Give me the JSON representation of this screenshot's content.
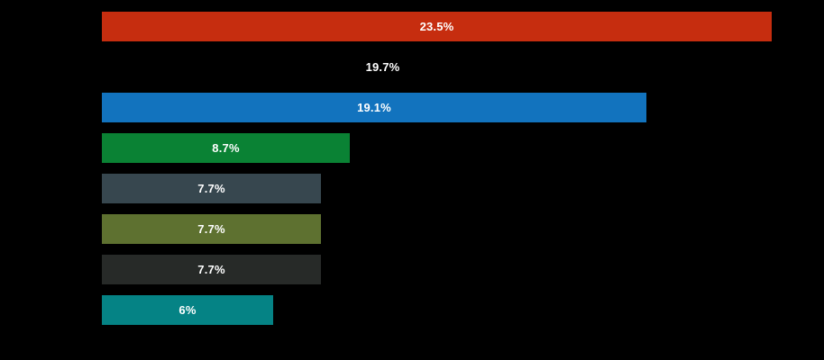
{
  "page": {
    "background": "#000000"
  },
  "chart_data": {
    "type": "bar",
    "orientation": "horizontal",
    "title": "",
    "values": [
      23.5,
      19.7,
      19.1,
      8.7,
      7.7,
      7.7,
      7.7,
      6
    ],
    "labels": [
      "23.5%",
      "19.7%",
      "19.1%",
      "8.7%",
      "7.7%",
      "7.7%",
      "7.7%",
      "6%"
    ],
    "bar_colors": [
      "#c62d0f",
      "#000000",
      "#1273be",
      "#0a8234",
      "#37474f",
      "#5e7130",
      "#272a28",
      "#058385"
    ],
    "label_color": "#ffffff",
    "background": "#000000",
    "value_axis_max": 23.5,
    "grid": false,
    "legend": false,
    "axis_labels_visible": false,
    "label_position": "center-of-bar"
  }
}
